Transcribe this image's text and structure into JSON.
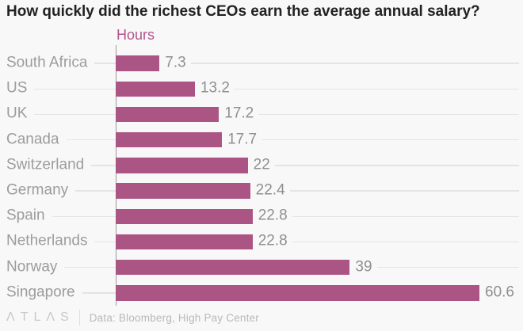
{
  "title": "How quickly did the richest CEOs earn the average annual salary?",
  "unit_label": "Hours",
  "chart_data": {
    "type": "bar",
    "orientation": "horizontal",
    "title": "How quickly did the richest CEOs earn the average annual salary?",
    "xlabel": "Hours",
    "ylabel": "",
    "categories": [
      "South Africa",
      "US",
      "UK",
      "Canada",
      "Switzerland",
      "Germany",
      "Spain",
      "Netherlands",
      "Norway",
      "Singapore"
    ],
    "values": [
      7.3,
      13.2,
      17.2,
      17.7,
      22,
      22.4,
      22.8,
      22.8,
      39,
      60.6
    ],
    "value_labels": [
      "7.3",
      "13.2",
      "17.2",
      "17.7",
      "22",
      "22.4",
      "22.8",
      "22.8",
      "39",
      "60.6"
    ],
    "xlim": [
      0,
      67
    ],
    "grid": "horizontal-leader-lines",
    "legend": "none",
    "bar_color": "#ab5585"
  },
  "colors": {
    "background": "#f8f8f8",
    "title": "#222222",
    "bar": "#ab5585",
    "unit_label": "#b5548e",
    "category_label": "#9c9c9c",
    "value_label": "#8f8f8f",
    "axis_line": "#9a9a9a",
    "leader_line": "#e4e4e4",
    "footer_text": "#c9c9c9"
  },
  "footer": {
    "logo_text": "ATLAS",
    "logo_display": "ΛTLΛS",
    "source": "Data: Bloomberg, High Pay Center"
  }
}
